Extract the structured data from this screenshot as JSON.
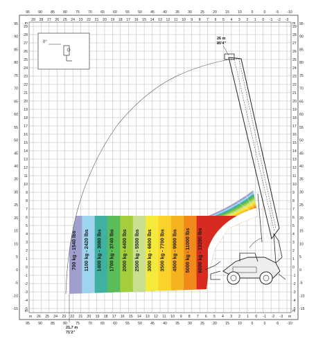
{
  "axes": {
    "top_ft": [
      "95",
      "90",
      "85",
      "80",
      "75",
      "70",
      "65",
      "60",
      "55",
      "50",
      "45",
      "40",
      "35",
      "30",
      "25",
      "20",
      "15",
      "10",
      "5",
      "0",
      "-5",
      "-10"
    ],
    "top_m": [
      "29",
      "28",
      "27",
      "26",
      "25",
      "24",
      "23",
      "22",
      "21",
      "20",
      "19",
      "18",
      "17",
      "16",
      "15",
      "14",
      "13",
      "12",
      "11",
      "10",
      "9",
      "8",
      "7",
      "6",
      "5",
      "4",
      "3",
      "2",
      "1",
      "0",
      "-1",
      "-2",
      "-3"
    ],
    "bottom_m": [
      "m",
      "26",
      "25",
      "24",
      "23",
      "22",
      "21",
      "20",
      "19",
      "18",
      "17",
      "16",
      "15",
      "14",
      "13",
      "12",
      "11",
      "10",
      "9",
      "8",
      "7",
      "6",
      "5",
      "4",
      "3",
      "2",
      "1",
      "0",
      "-1",
      "-2",
      "-3",
      "m"
    ],
    "bottom_ft": [
      "95",
      "90",
      "85",
      "80",
      "75",
      "70",
      "65",
      "60",
      "55",
      "50",
      "45",
      "40",
      "35",
      "30",
      "25",
      "20",
      "15",
      "10",
      "5",
      "0",
      "-5",
      "-10"
    ],
    "left_m": [
      "m",
      "29",
      "28",
      "27",
      "26",
      "25",
      "24",
      "23",
      "22",
      "21",
      "20",
      "19",
      "18",
      "17",
      "16",
      "15",
      "14",
      "13",
      "12",
      "11",
      "10",
      "9",
      "8",
      "7",
      "6",
      "5",
      "4",
      "3",
      "2",
      "1",
      "0",
      "-1",
      "-2",
      "-3",
      "-4",
      "-5",
      "m"
    ],
    "left_ft": [
      "95",
      "90",
      "85",
      "80",
      "75",
      "70",
      "65",
      "60",
      "55",
      "50",
      "45",
      "40",
      "35",
      "30",
      "25",
      "20",
      "15",
      "10",
      "5",
      "0",
      "-5",
      "-10",
      "-15"
    ],
    "right_m": [
      "m",
      "29",
      "28",
      "27",
      "26",
      "25",
      "24",
      "23",
      "22",
      "21",
      "20",
      "19",
      "18",
      "17",
      "16",
      "15",
      "14",
      "13",
      "12",
      "11",
      "10",
      "9",
      "8",
      "7",
      "6",
      "5",
      "4",
      "3",
      "2",
      "1",
      "0",
      "-1",
      "-2",
      "-3",
      "-4",
      "-5",
      "m"
    ],
    "right_ft": [
      "95",
      "90",
      "85",
      "80",
      "75",
      "70",
      "65",
      "60",
      "55",
      "50",
      "45",
      "40",
      "35",
      "30",
      "25",
      "20",
      "15",
      "10",
      "5",
      "0",
      "-5",
      "-10",
      "-15"
    ]
  },
  "zones": [
    {
      "label": "700 kg - 1540 lbs",
      "color": "#9f9fce"
    },
    {
      "label": "1100 kg - 2420 lbs",
      "color": "#9fd3ee"
    },
    {
      "label": "1400 kg - 3080 lbs",
      "color": "#3fb1a0"
    },
    {
      "label": "1700 kg - 3740 lbs",
      "color": "#5bbd5a"
    },
    {
      "label": "2000 kg - 4400 lbs",
      "color": "#a4cf3a"
    },
    {
      "label": "2500 kg - 5500 lbs",
      "color": "#c9e08e"
    },
    {
      "label": "3000 kg - 6600 lbs",
      "color": "#f5ea3c"
    },
    {
      "label": "3500 kg - 7700 lbs",
      "color": "#f9d22a"
    },
    {
      "label": "4500 kg - 9900 lbs",
      "color": "#f5b31f"
    },
    {
      "label": "5000 kg - 11000 lbs",
      "color": "#f08a1a"
    },
    {
      "label": "6000 kg - 13200 lbs",
      "color": "#d62b1e"
    }
  ],
  "annotations": {
    "max_height_m": "26 m",
    "max_height_ft": "85'4\"",
    "reach_m": "21,7 m",
    "reach_ft": "71'2\"",
    "inset_angle": "0°"
  },
  "colors": {
    "grid": "#9a9a9a",
    "frame": "#333333"
  }
}
